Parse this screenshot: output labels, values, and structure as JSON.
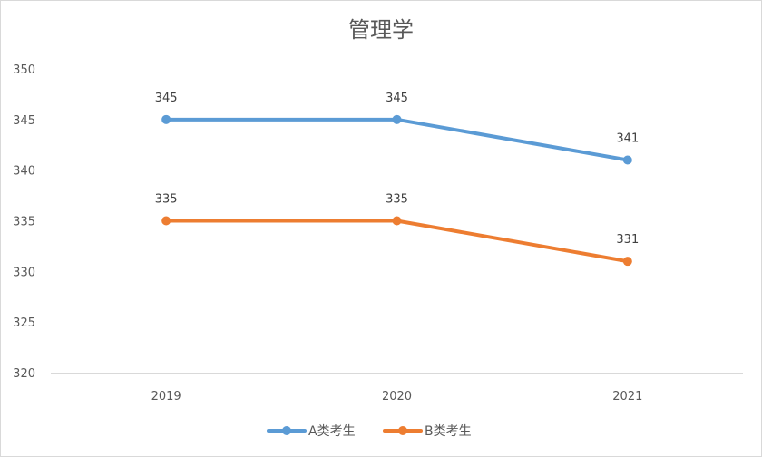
{
  "chart_data": {
    "type": "line",
    "title": "管理学",
    "xlabel": "",
    "ylabel": "",
    "categories": [
      "2019",
      "2020",
      "2021"
    ],
    "ylim": [
      320,
      350
    ],
    "yticks": [
      320,
      325,
      330,
      335,
      340,
      345,
      350
    ],
    "grid": false,
    "legend_position": "bottom",
    "series": [
      {
        "name": "A类考生",
        "values": [
          345,
          345,
          341
        ],
        "color": "#5b9bd5"
      },
      {
        "name": "B类考生",
        "values": [
          335,
          335,
          331
        ],
        "color": "#ed7d31"
      }
    ]
  }
}
